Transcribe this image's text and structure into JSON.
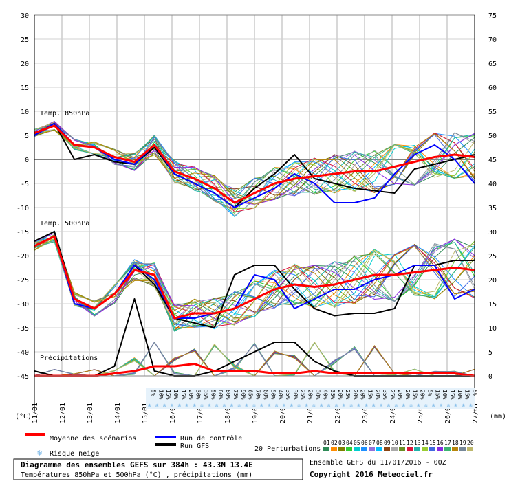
{
  "colors": {
    "mean": "#ff0000",
    "control": "#0000ff",
    "gfs": "#000000",
    "snow": "#7ab8e8",
    "perturbations": [
      "#2e8b57",
      "#ff8c00",
      "#808000",
      "#32cd32",
      "#00ced1",
      "#1e90ff",
      "#9370db",
      "#00bfff",
      "#8b4513",
      "#a9a9a9",
      "#6b8e23",
      "#dc143c",
      "#20b2aa",
      "#9acd32",
      "#4169e1",
      "#8a2be2",
      "#3cb371",
      "#b8860b",
      "#778899",
      "#bdb76b"
    ]
  },
  "chart_data": {
    "type": "line",
    "x": [
      "11/01",
      "12/01",
      "13/01",
      "14/01",
      "15/01",
      "16/01",
      "17/01",
      "18/01",
      "19/01",
      "20/01",
      "21/01",
      "22/01",
      "23/01",
      "24/01",
      "25/01",
      "26/01",
      "27/01"
    ],
    "y_left_ticks": [
      "30",
      "25",
      "20",
      "15",
      "10",
      "5",
      "0",
      "-5",
      "-10",
      "-15",
      "-20",
      "-25",
      "-30",
      "-35",
      "-40",
      "-45"
    ],
    "y_right_ticks": [
      "75",
      "70",
      "65",
      "60",
      "55",
      "50",
      "45",
      "40",
      "35",
      "30",
      "25",
      "20",
      "15",
      "10",
      "5",
      "0"
    ],
    "y_left_unit": "(°C)",
    "y_right_unit": "(mm)",
    "t850_label": "Temp. 850hPa",
    "t500_label": "Temp. 500hPa",
    "precip_label": "Précipitations",
    "mean_850": [
      5.5,
      7,
      3,
      2.5,
      0.5,
      -0.5,
      3,
      -2.5,
      -4,
      -6,
      -9,
      -7,
      -5,
      -4,
      -3.5,
      -3,
      -2.5,
      -2.5,
      -1.5,
      -0.5,
      0.5,
      1,
      0.5
    ],
    "control_850": [
      5,
      7.5,
      3,
      2.5,
      0,
      -1,
      3,
      -3,
      -5,
      -7,
      -10,
      -8,
      -6,
      -3,
      -5,
      -9,
      -9,
      -8,
      -3,
      1,
      3,
      0,
      -5
    ],
    "gfs_850": [
      5,
      7.5,
      0,
      1,
      -0.5,
      -1,
      2.5,
      -3,
      -5,
      -7,
      -10,
      -6,
      -3,
      1,
      -4,
      -5,
      -6,
      -6.5,
      -7,
      -2,
      -1,
      0,
      1
    ],
    "mean_500": [
      -18,
      -16,
      -29,
      -31,
      -28,
      -23,
      -24,
      -33,
      -32,
      -32,
      -31,
      -29,
      -27,
      -26,
      -26.5,
      -26,
      -25,
      -24,
      -24,
      -23.5,
      -23,
      -22.5,
      -23
    ],
    "control_500": [
      -18,
      -16,
      -30,
      -31,
      -28,
      -22,
      -25,
      -33,
      -33,
      -32,
      -31,
      -24,
      -25,
      -31,
      -29,
      -27,
      -27,
      -25,
      -24,
      -22,
      -22,
      -29,
      -27
    ],
    "gfs_500": [
      -17,
      -15,
      -29,
      -31,
      -28,
      -22,
      -26,
      -33,
      -34,
      -35,
      -24,
      -22,
      -22,
      -27,
      -31,
      -32.5,
      -32,
      -32,
      -31,
      -22,
      -22,
      -21,
      -21
    ],
    "mean_precip": [
      -45,
      -45,
      -45,
      -45,
      -44.5,
      -44,
      -43,
      -43,
      -42.5,
      -44,
      -44,
      -44,
      -44.5,
      -44.5,
      -44,
      -44.5,
      -44.5,
      -44.5,
      -44.5,
      -44.5,
      -44.5,
      -44.5,
      -45
    ],
    "gfs_precip": [
      -44,
      -45,
      -45,
      -45,
      -43,
      -29,
      -44,
      -45,
      -45,
      -44,
      -42,
      -40,
      -38,
      -38,
      -42,
      -44,
      -45,
      -45,
      -45,
      -45,
      -45,
      -45,
      -45
    ],
    "snow_risk": [
      "5%",
      "10%",
      "15%",
      "10%",
      "15%",
      "20%",
      "30%",
      "35%",
      "50%",
      "60%",
      "80%",
      "75%",
      "90%",
      "65%",
      "70%",
      "60%",
      "50%",
      "40%",
      "35%",
      "30%",
      "25%",
      "20%",
      "30%",
      "40%",
      "35%",
      "20%",
      "25%",
      "20%",
      "20%",
      "15%",
      "20%",
      "35%",
      "25%",
      "20%",
      "20%",
      "15%",
      "20%",
      "5%",
      "15%",
      "10%",
      "15%",
      "10%",
      "15%",
      "5%"
    ],
    "legend": {
      "mean": "Moyenne des scénarios",
      "control": "Run de contrôle",
      "gfs": "Run GFS",
      "snow": "Risque neige",
      "perturbations": "20 Perturbations",
      "perturbation_ids": [
        "01",
        "02",
        "03",
        "04",
        "05",
        "06",
        "07",
        "08",
        "09",
        "10",
        "11",
        "12",
        "13",
        "14",
        "15",
        "16",
        "17",
        "18",
        "19",
        "20"
      ]
    },
    "title": "Diagramme des ensembles GEFS sur 384h : 43.3N 13.4E",
    "subtitle": "Températures 850hPa et 500hPa (°C) , précipitations (mm)",
    "run_info": "Ensemble GEFS du 11/01/2016 - 00Z",
    "copyright": "Copyright 2016 Meteociel.fr"
  }
}
